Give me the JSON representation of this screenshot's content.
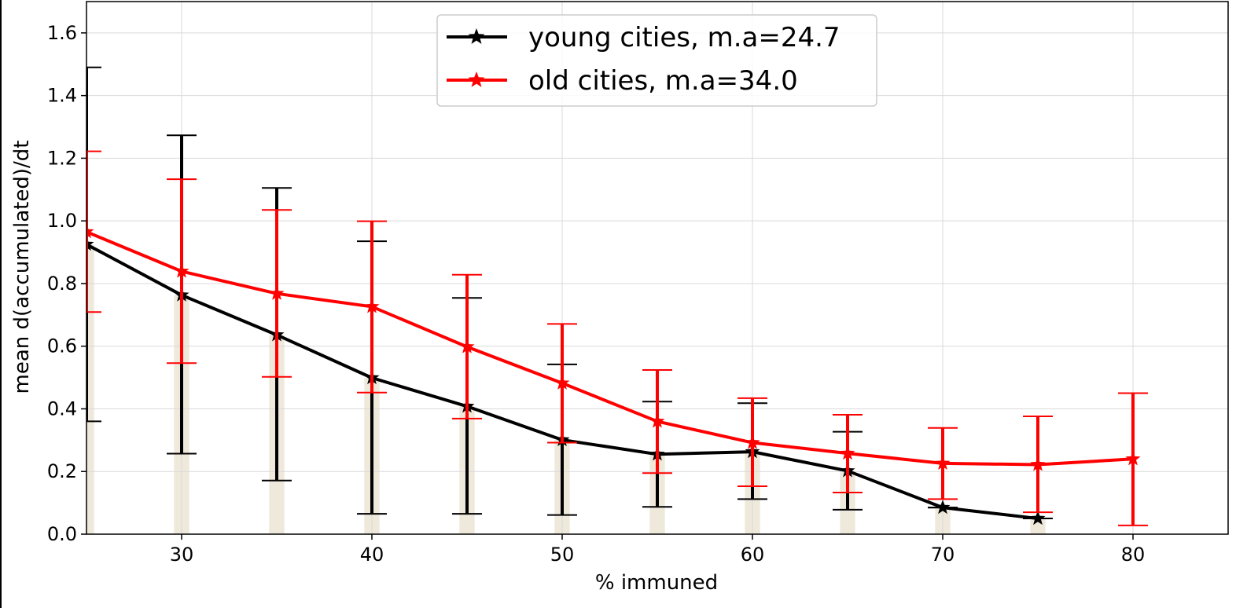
{
  "chart_data": {
    "type": "line",
    "title": "",
    "xlabel": "% immuned",
    "ylabel": "mean d(accumulated)/dt",
    "xlim": [
      25,
      85
    ],
    "ylim": [
      0,
      1.7
    ],
    "xticks": [
      30,
      40,
      50,
      60,
      70,
      80
    ],
    "yticks": [
      0.0,
      0.2,
      0.4,
      0.6,
      0.8,
      1.0,
      1.2,
      1.4,
      1.6
    ],
    "xtick_labels": [
      "30",
      "40",
      "50",
      "60",
      "70",
      "80"
    ],
    "ytick_labels": [
      "0.0",
      "0.2",
      "0.4",
      "0.6",
      "0.8",
      "1.0",
      "1.2",
      "1.4",
      "1.6"
    ],
    "grid": true,
    "legend_position": "top-center",
    "series": [
      {
        "name": "young cities, m.a=24.7",
        "color": "#000000",
        "marker": "star",
        "x": [
          25,
          30,
          35,
          40,
          45,
          50,
          55,
          60,
          65,
          70,
          75
        ],
        "y": [
          0.925,
          0.763,
          0.636,
          0.499,
          0.408,
          0.301,
          0.255,
          0.263,
          0.202,
          0.085,
          0.05
        ],
        "err_low": [
          0.36,
          0.257,
          0.171,
          0.065,
          0.065,
          0.061,
          0.087,
          0.112,
          0.078,
          0.085,
          0.05
        ],
        "err_high": [
          1.49,
          1.273,
          1.105,
          0.935,
          0.754,
          0.542,
          0.423,
          0.418,
          0.327,
          0.085,
          0.05
        ]
      },
      {
        "name": "old cities, m.a=34.0",
        "color": "#ff0000",
        "marker": "star",
        "x": [
          25,
          30,
          35,
          40,
          45,
          50,
          55,
          60,
          65,
          70,
          75,
          80
        ],
        "y": [
          0.965,
          0.839,
          0.768,
          0.726,
          0.598,
          0.482,
          0.36,
          0.292,
          0.258,
          0.226,
          0.222,
          0.24
        ],
        "err_low": [
          0.709,
          0.546,
          0.502,
          0.452,
          0.369,
          0.292,
          0.195,
          0.153,
          0.133,
          0.112,
          0.07,
          0.028
        ],
        "err_high": [
          1.222,
          1.133,
          1.035,
          0.999,
          0.828,
          0.671,
          0.524,
          0.434,
          0.381,
          0.339,
          0.376,
          0.45
        ]
      }
    ],
    "background_bars": {
      "color": "#efe9dc",
      "x": [
        25,
        30,
        35,
        40,
        45,
        50,
        55,
        60,
        65,
        70,
        75
      ],
      "height": [
        0.925,
        0.763,
        0.636,
        0.499,
        0.408,
        0.301,
        0.255,
        0.263,
        0.202,
        0.085,
        0.05
      ]
    }
  }
}
